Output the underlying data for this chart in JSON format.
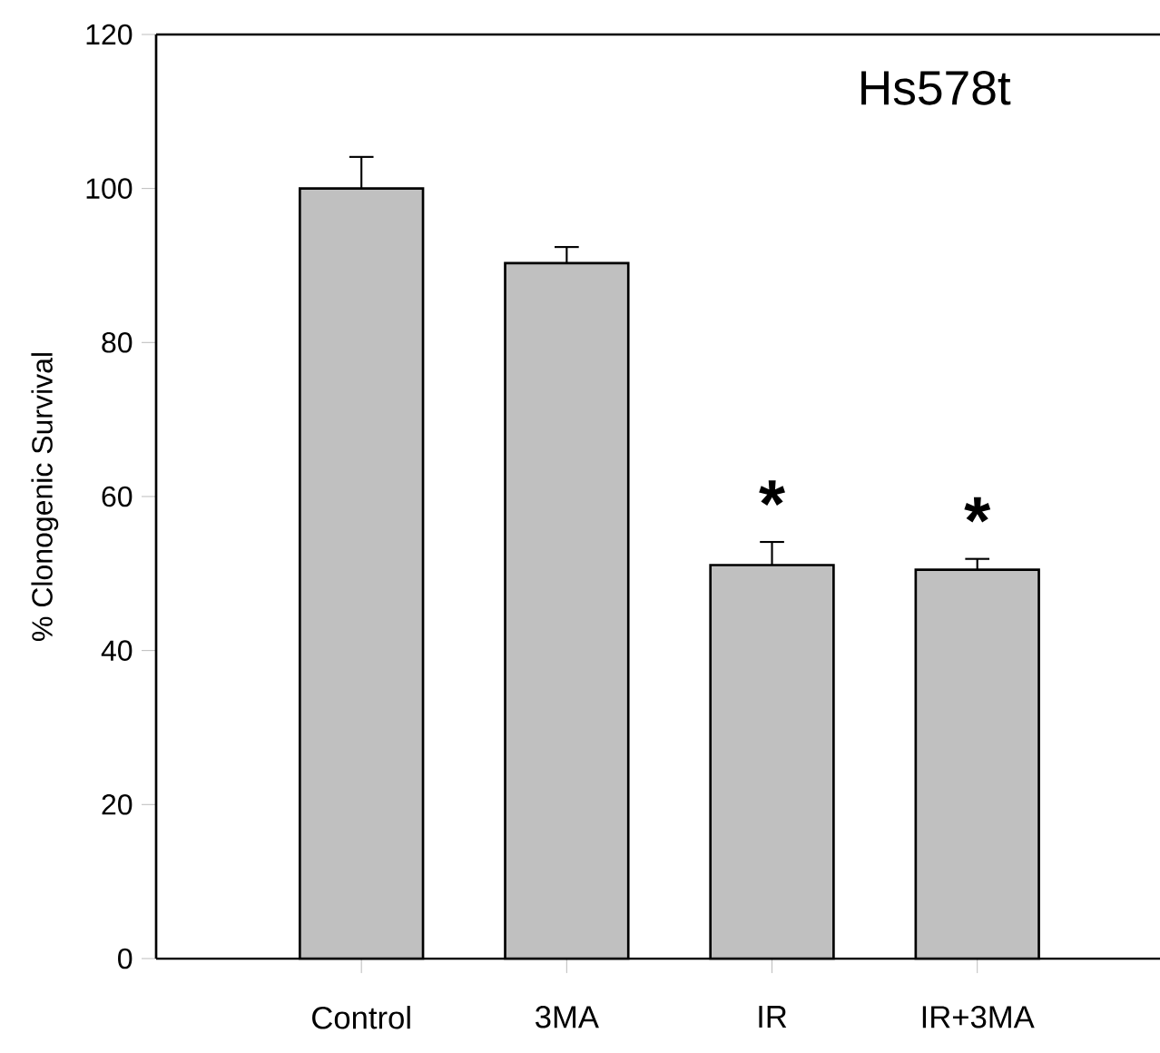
{
  "chart_data": {
    "type": "bar",
    "title": "Hs578t",
    "ylabel": "% Clonogenic Survival",
    "categories": [
      "Control",
      "3MA",
      "IR",
      "IR+3MA"
    ],
    "values": [
      100,
      90.3,
      51.1,
      50.5
    ],
    "errors": [
      4.1,
      2.1,
      3.0,
      1.4
    ],
    "color": "#c0c0c0",
    "ylim": [
      0,
      120
    ],
    "yticks": [
      0,
      20,
      40,
      60,
      80,
      100,
      120
    ],
    "annotations": [
      "*",
      "*"
    ]
  }
}
